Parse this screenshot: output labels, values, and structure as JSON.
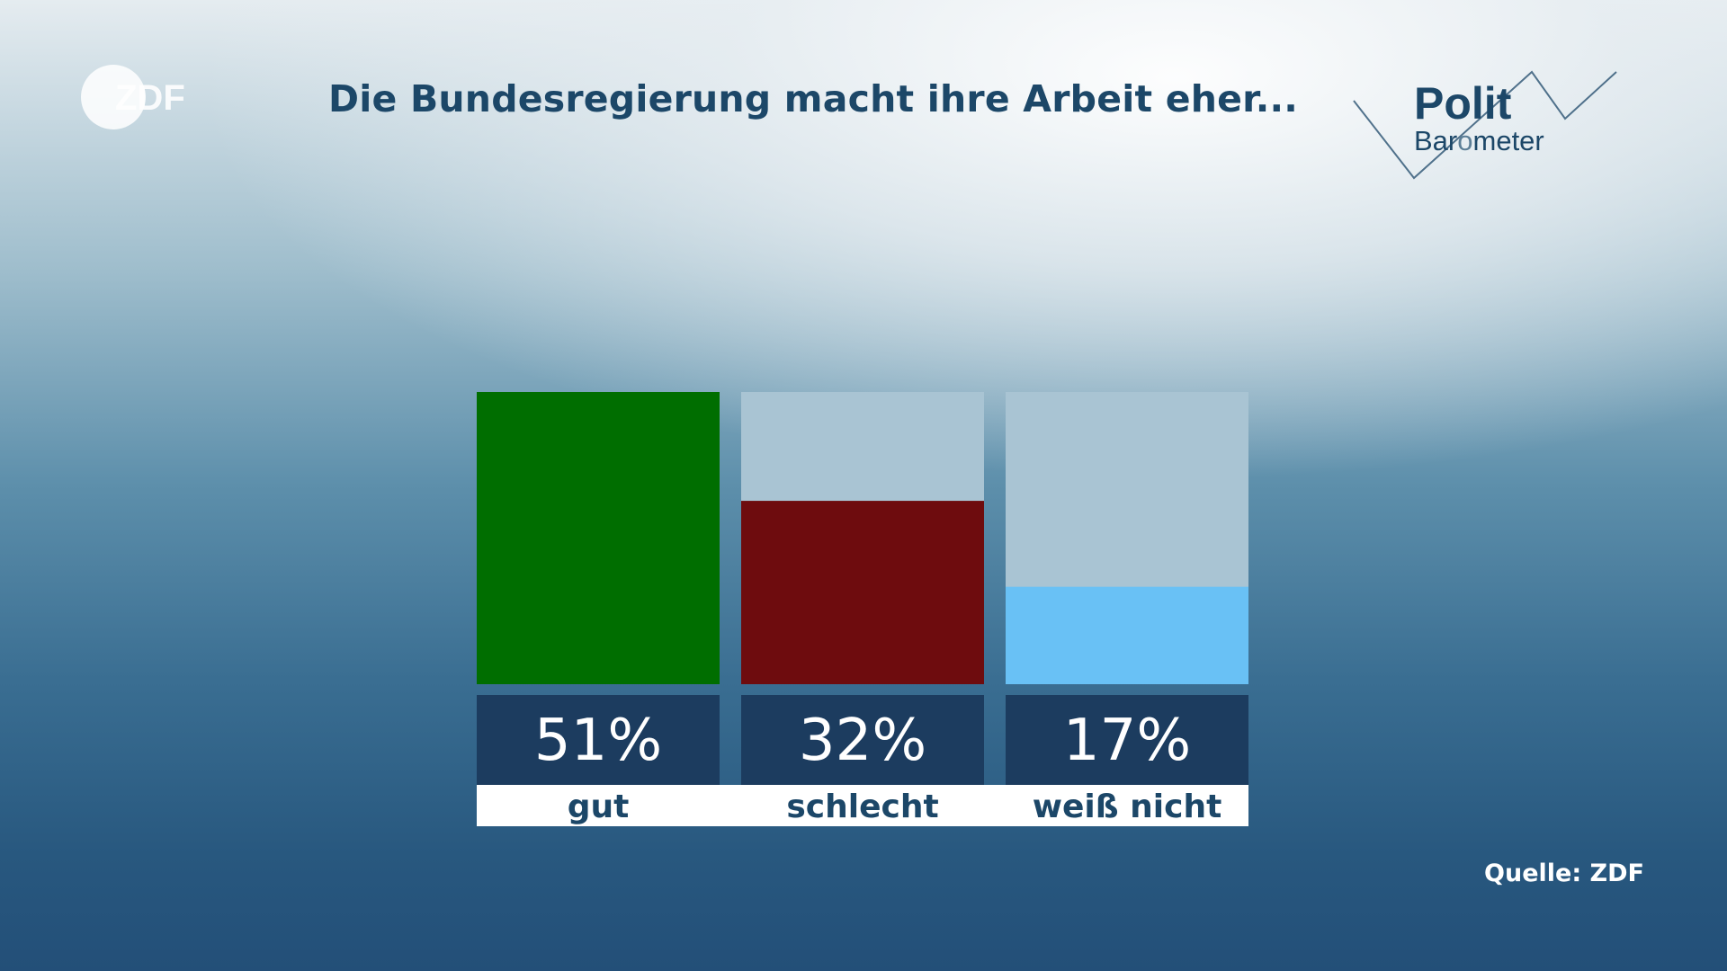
{
  "header": {
    "logo_text": "ZDF",
    "title": "Die Bundesregierung macht ihre Arbeit eher...",
    "brand_line1_a": "Pol",
    "brand_line1_b": "it",
    "brand_line1_o": "o",
    "brand_line2_a": "Bar",
    "brand_line2_o": "o",
    "brand_line2_b": "meter"
  },
  "footer": {
    "source": "Quelle: ZDF"
  },
  "colors": {
    "gut": "#006e00",
    "schlecht": "#6e0c0e",
    "weiss_nicht": "#69c1f5",
    "bar_track": "#a9c4d3",
    "value_box": "#1c3c5f",
    "label_box": "#ffffff",
    "label_text": "#1c4768"
  },
  "chart_data": {
    "type": "bar",
    "categories": [
      "gut",
      "schlecht",
      "weiß nicht"
    ],
    "values": [
      51,
      32,
      17
    ],
    "value_labels": [
      "51%",
      "32%",
      "17%"
    ],
    "unit": "%",
    "ylim": [
      0,
      51
    ],
    "title": "Die Bundesregierung macht ihre Arbeit eher...",
    "legend": "none",
    "grid": false
  }
}
